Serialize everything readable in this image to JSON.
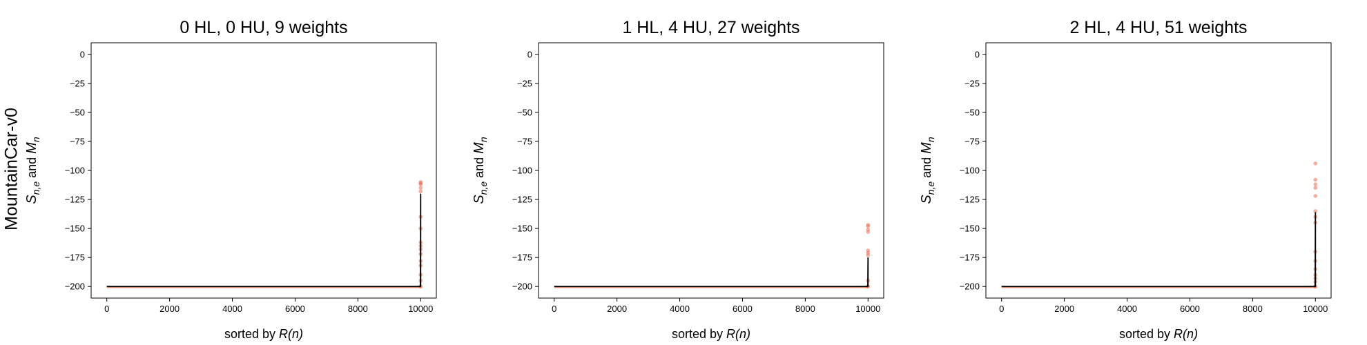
{
  "figure": {
    "row_label": "MountainCar-v0",
    "colors": {
      "mean_line": "#000000",
      "sample_points": "#f4694a",
      "background": "#ffffff"
    }
  },
  "chart_data": [
    {
      "type": "scatter",
      "title": "0 HL, 0 HU, 9 weights",
      "xlabel_prefix": "sorted by ",
      "xlabel_math": "R(n)",
      "ylabel_parts": [
        "S",
        "n,e",
        " and ",
        "M",
        "n"
      ],
      "xlim": [
        -500,
        10500
      ],
      "ylim": [
        -210,
        10
      ],
      "xticks": [
        0,
        2000,
        4000,
        6000,
        8000,
        10000
      ],
      "yticks": [
        0,
        -25,
        -50,
        -75,
        -100,
        -125,
        -150,
        -175,
        -200
      ],
      "grid": false,
      "series": [
        {
          "kind": "points",
          "points": [
            [
              10000,
              -110
            ],
            [
              10000,
              -111
            ],
            [
              10000,
              -112
            ],
            [
              10000,
              -115
            ],
            [
              10000,
              -118
            ],
            [
              10000,
              -140
            ],
            [
              10000,
              -150
            ],
            [
              10000,
              -162
            ],
            [
              10000,
              -165
            ],
            [
              10000,
              -168
            ],
            [
              10000,
              -172
            ],
            [
              10000,
              -178
            ],
            [
              10000,
              -182
            ],
            [
              10000,
              -190
            ],
            [
              10000,
              -195
            ],
            [
              9990,
              -200
            ],
            [
              10000,
              -200
            ]
          ]
        },
        {
          "kind": "line",
          "points": [
            [
              0,
              -200
            ],
            [
              9990,
              -200
            ],
            [
              9995,
              -195
            ],
            [
              10000,
              -120
            ],
            [
              10000,
              -200
            ]
          ]
        }
      ]
    },
    {
      "type": "scatter",
      "title": "1 HL, 4 HU, 27 weights",
      "xlabel_prefix": "sorted by ",
      "xlabel_math": "R(n)",
      "ylabel_parts": [
        "S",
        "n,e",
        " and ",
        "M",
        "n"
      ],
      "xlim": [
        -500,
        10500
      ],
      "ylim": [
        -210,
        10
      ],
      "xticks": [
        0,
        2000,
        4000,
        6000,
        8000,
        10000
      ],
      "yticks": [
        0,
        -25,
        -50,
        -75,
        -100,
        -125,
        -150,
        -175,
        -200
      ],
      "grid": false,
      "series": [
        {
          "kind": "points",
          "points": [
            [
              10000,
              -147
            ],
            [
              10000,
              -148
            ],
            [
              10000,
              -151
            ],
            [
              10000,
              -153
            ],
            [
              10000,
              -169
            ],
            [
              10000,
              -171
            ],
            [
              10000,
              -173
            ],
            [
              10000,
              -195
            ],
            [
              9990,
              -200
            ],
            [
              10000,
              -200
            ]
          ]
        },
        {
          "kind": "line",
          "points": [
            [
              0,
              -200
            ],
            [
              9990,
              -200
            ],
            [
              9995,
              -198
            ],
            [
              10000,
              -175
            ],
            [
              10000,
              -200
            ]
          ]
        }
      ]
    },
    {
      "type": "scatter",
      "title": "2 HL, 4 HU, 51 weights",
      "xlabel_prefix": "sorted by ",
      "xlabel_math": "R(n)",
      "ylabel_parts": [
        "S",
        "n,e",
        " and ",
        "M",
        "n"
      ],
      "xlim": [
        -500,
        10500
      ],
      "ylim": [
        -210,
        10
      ],
      "xticks": [
        0,
        2000,
        4000,
        6000,
        8000,
        10000
      ],
      "yticks": [
        0,
        -25,
        -50,
        -75,
        -100,
        -125,
        -150,
        -175,
        -200
      ],
      "grid": false,
      "series": [
        {
          "kind": "points",
          "points": [
            [
              10000,
              -94
            ],
            [
              10000,
              -108
            ],
            [
              10000,
              -112
            ],
            [
              10000,
              -115
            ],
            [
              10000,
              -122
            ],
            [
              10000,
              -135
            ],
            [
              10000,
              -140
            ],
            [
              10000,
              -145
            ],
            [
              10000,
              -170
            ],
            [
              10000,
              -178
            ],
            [
              10000,
              -185
            ],
            [
              10000,
              -190
            ],
            [
              10000,
              -193
            ],
            [
              10000,
              -196
            ],
            [
              9990,
              -200
            ],
            [
              10000,
              -200
            ]
          ]
        },
        {
          "kind": "line",
          "points": [
            [
              0,
              -200
            ],
            [
              9990,
              -200
            ],
            [
              9995,
              -190
            ],
            [
              10000,
              -136
            ],
            [
              10000,
              -200
            ]
          ]
        }
      ]
    }
  ]
}
